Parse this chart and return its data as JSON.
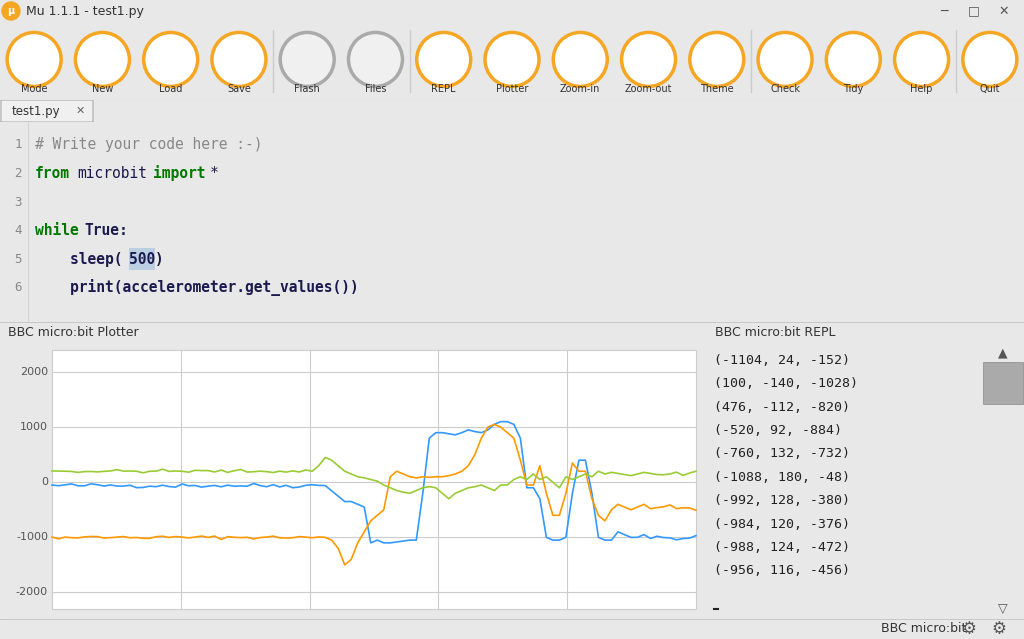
{
  "title": "Mu 1.1.1 - test1.py",
  "toolbar_buttons": [
    "Mode",
    "New",
    "Load",
    "Save",
    "Flash",
    "Files",
    "REPL",
    "Plotter",
    "Zoom-in",
    "Zoom-out",
    "Theme",
    "Check",
    "Tidy",
    "Help",
    "Quit"
  ],
  "tab_name": "test1.py",
  "code_lines": [
    "# Write your code here :-)",
    "from microbit import *",
    "",
    "while True:",
    "    sleep(500)",
    "    print(accelerometer.get_values())"
  ],
  "plotter_title": "BBC micro:bit Plotter",
  "repl_title": "BBC micro:bit REPL",
  "repl_lines": [
    "(-1104, 24, -152)",
    "(100, -140, -1028)",
    "(476, -112, -820)",
    "(-520, 92, -884)",
    "(-760, 132, -732)",
    "(-1088, 180, -48)",
    "(-992, 128, -380)",
    "(-984, 120, -376)",
    "(-988, 124, -472)",
    "(-956, 116, -456)"
  ],
  "bg_color": "#e8e8e8",
  "editor_bg": "#f5f5f0",
  "toolbar_bg": "#e8e8e8",
  "plot_bg": "#ffffff",
  "repl_bg": "#fafafa",
  "accent_color": "#f5a623",
  "title_bar_bg": "#e8e8e8",
  "section_bar_bg": "#d8d8d8",
  "y_ticks": [
    -2000,
    -1000,
    0,
    1000,
    2000
  ],
  "ylim": [
    -2300,
    2400
  ],
  "line_blue": "#3399ff",
  "line_orange": "#ff9900",
  "line_green": "#99cc33",
  "grid_color": "#cccccc",
  "status_bar_text": "BBC micro:bit",
  "comment_color": "#888888",
  "keyword_color": "#007700",
  "keyword2_color": "#0000aa",
  "text_color": "#1a1a4e",
  "linenr_color": "#888888"
}
